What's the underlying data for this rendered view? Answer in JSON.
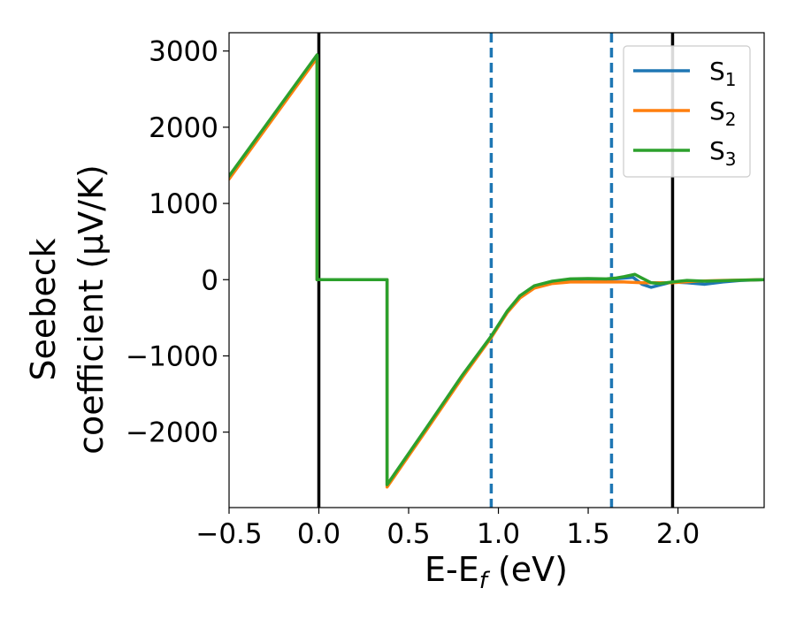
{
  "chart_data": {
    "type": "line",
    "xlabel": "E-E",
    "xlabel_subscript": "f",
    "xlabel_unit": " (eV)",
    "ylabel_line1": "Seebeck",
    "ylabel_line2": "coefficient  (μV/K)",
    "xlim": [
      -0.5,
      2.48
    ],
    "ylim": [
      -2990,
      3240
    ],
    "xticks": [
      -0.5,
      0.0,
      0.5,
      1.0,
      1.5,
      2.0
    ],
    "xtick_labels": [
      "−0.5",
      "0.0",
      "0.5",
      "1.0",
      "1.5",
      "2.0"
    ],
    "yticks": [
      -2000,
      -1000,
      0,
      1000,
      2000,
      3000
    ],
    "ytick_labels": [
      "−2000",
      "−1000",
      "0",
      "1000",
      "2000",
      "3000"
    ],
    "grid": false,
    "legend_position": "top-right",
    "vlines": [
      {
        "x": 0.0,
        "style": "solid",
        "color": "#000000"
      },
      {
        "x": 1.97,
        "style": "solid",
        "color": "#000000"
      },
      {
        "x": 0.96,
        "style": "dashed",
        "color": "#1f77b4"
      },
      {
        "x": 1.63,
        "style": "dashed",
        "color": "#1f77b4"
      }
    ],
    "series": [
      {
        "name": "S",
        "subscript": "1",
        "color": "#1f77b4",
        "x": [
          -0.5,
          -0.01,
          -0.01,
          0.38,
          0.38,
          0.6,
          0.8,
          0.96,
          1.05,
          1.12,
          1.2,
          1.3,
          1.4,
          1.5,
          1.6,
          1.7,
          1.75,
          1.8,
          1.85,
          1.9,
          1.97,
          2.05,
          2.15,
          2.25,
          2.35,
          2.48
        ],
        "y": [
          1350,
          2940,
          0,
          0,
          -2700,
          -1950,
          -1260,
          -750,
          -420,
          -220,
          -90,
          -30,
          0,
          10,
          0,
          20,
          30,
          -60,
          -100,
          -70,
          -30,
          -40,
          -60,
          -30,
          -10,
          0
        ]
      },
      {
        "name": "S",
        "subscript": "2",
        "color": "#ff7f0e",
        "x": [
          -0.5,
          -0.01,
          -0.01,
          0.38,
          0.38,
          0.6,
          0.8,
          0.96,
          1.05,
          1.12,
          1.2,
          1.3,
          1.4,
          1.5,
          1.6,
          1.7,
          1.8,
          1.9,
          1.97,
          2.1,
          2.25,
          2.48
        ],
        "y": [
          1320,
          2910,
          0,
          0,
          -2720,
          -1970,
          -1280,
          -760,
          -430,
          -240,
          -110,
          -50,
          -30,
          -30,
          -30,
          -30,
          -40,
          -40,
          -40,
          -20,
          -10,
          0
        ]
      },
      {
        "name": "S",
        "subscript": "3",
        "color": "#2ca02c",
        "x": [
          -0.5,
          -0.01,
          -0.01,
          0.38,
          0.38,
          0.6,
          0.8,
          0.96,
          1.05,
          1.12,
          1.2,
          1.3,
          1.4,
          1.5,
          1.6,
          1.65,
          1.7,
          1.76,
          1.8,
          1.85,
          1.9,
          1.97,
          2.05,
          2.15,
          2.3,
          2.48
        ],
        "y": [
          1360,
          2950,
          0,
          0,
          -2690,
          -1940,
          -1250,
          -740,
          -410,
          -210,
          -80,
          -20,
          10,
          15,
          10,
          20,
          40,
          70,
          20,
          -40,
          -50,
          -30,
          -10,
          -20,
          -10,
          0
        ]
      }
    ]
  }
}
